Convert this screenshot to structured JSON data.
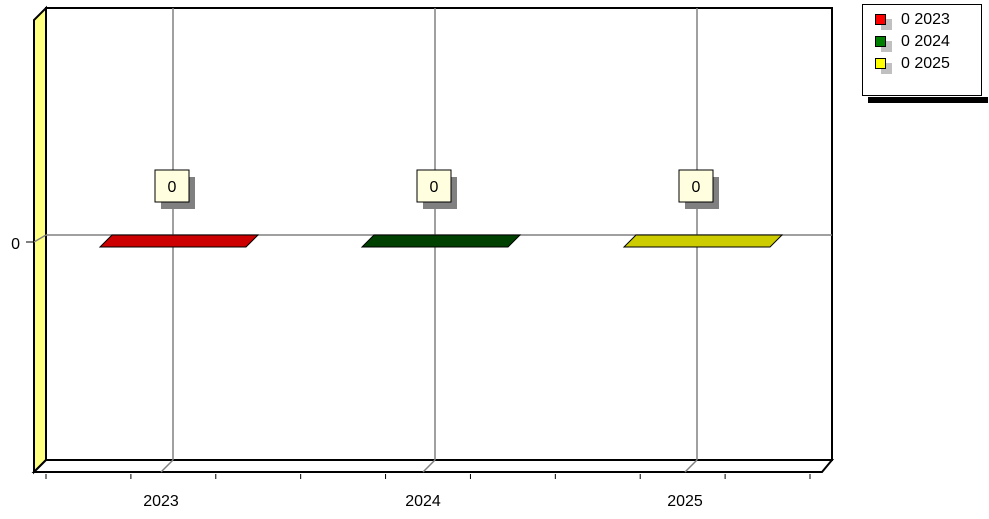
{
  "chart_data": {
    "type": "bar",
    "categories": [
      "2023",
      "2024",
      "2025"
    ],
    "series": [
      {
        "name": "0 2023",
        "values": [
          0,
          null,
          null
        ],
        "color": "#ff0000",
        "bar_color": "#cc0000"
      },
      {
        "name": "0 2024",
        "values": [
          null,
          0,
          null
        ],
        "color": "#008000",
        "bar_color": "#004000"
      },
      {
        "name": "0 2025",
        "values": [
          null,
          null,
          0
        ],
        "color": "#ffff00",
        "bar_color": "#cccc00"
      }
    ],
    "data_labels": [
      "0",
      "0",
      "0"
    ],
    "y_ticks": [
      "0"
    ],
    "ylim": [
      -1,
      1
    ],
    "grid": true,
    "legend_position": "top-right",
    "view": "3d"
  }
}
